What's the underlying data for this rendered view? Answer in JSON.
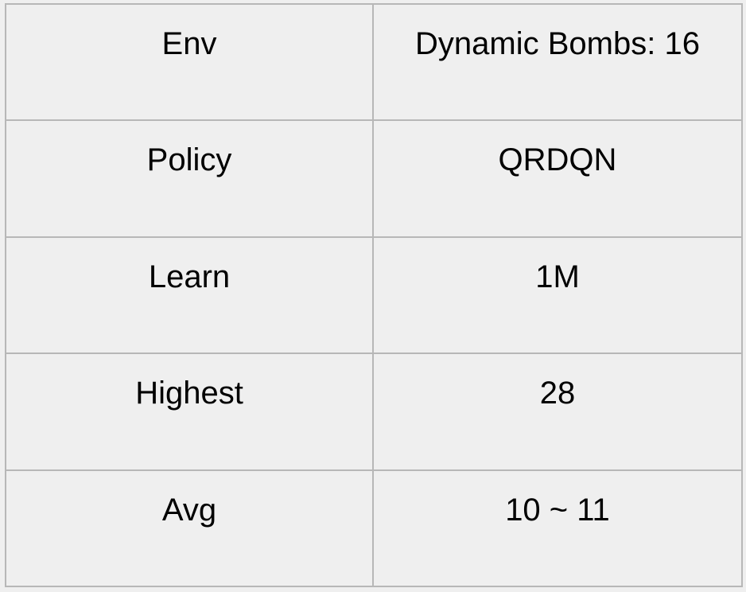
{
  "table": {
    "rows": [
      {
        "key": "Env",
        "value": "Dynamic Bombs: 16"
      },
      {
        "key": "Policy",
        "value": "QRDQN"
      },
      {
        "key": "Learn",
        "value": "1M"
      },
      {
        "key": "Highest",
        "value": "28"
      },
      {
        "key": "Avg",
        "value": "10 ~ 11"
      }
    ]
  }
}
